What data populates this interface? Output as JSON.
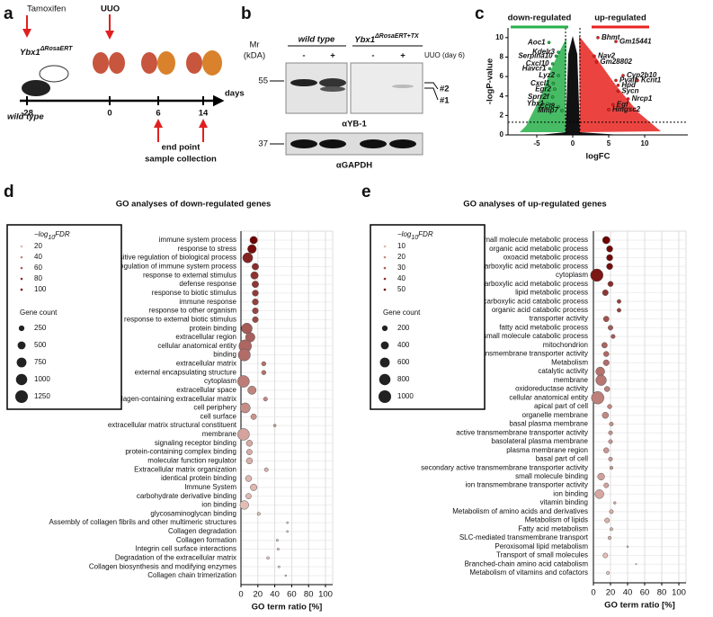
{
  "panel_a": {
    "label": "a",
    "tamoxifen": "Tamoxifen",
    "uuo": "UUO",
    "mouse_ko": {
      "gene": "Ybx1",
      "sup": "ΔRosaERT"
    },
    "mouse_wt": "wild type",
    "timepoints": [
      "-28",
      "0",
      "6",
      "14"
    ],
    "unit": "days",
    "endpoint": [
      "end point",
      "sample collection"
    ]
  },
  "panel_b": {
    "label": "b",
    "mr": [
      "Mr",
      "(kDA)"
    ],
    "group_wt": "wild type",
    "group_ko": {
      "gene": "Ybx1",
      "sup": "ΔRosaERT+TX"
    },
    "signs": [
      "-",
      "+",
      "-",
      "+"
    ],
    "condition": "UUO (day 6)",
    "markers": [
      "55",
      "37"
    ],
    "bands": [
      "#2",
      "#1"
    ],
    "antibodies": [
      "αYB-1",
      "αGAPDH"
    ]
  },
  "panel_c": {
    "label": "c"
  },
  "panel_d": {
    "label": "d"
  },
  "panel_e": {
    "label": "e"
  },
  "chart_data": [
    {
      "type": "scatter",
      "x_label": "logFC",
      "y_label": "-logP-value",
      "xlim": [
        -9,
        16
      ],
      "ylim": [
        0,
        11
      ],
      "xticks": [
        -5,
        0,
        5,
        10
      ],
      "yticks": [
        0,
        2,
        4,
        6,
        8,
        10
      ],
      "thresholds": {
        "logfc": [
          -1,
          1
        ],
        "pvalue": 1.3
      },
      "series": [
        {
          "name": "down-regulated",
          "color": "#27b04a",
          "labels": [
            "Aoc1",
            "Kdelr3",
            "Serpina10",
            "Cxcl10",
            "Havcr1",
            "Lyz2",
            "Cxcl1",
            "Egr2",
            "Sprr2f",
            "Ybx1",
            "Ccl8",
            "Mmp7"
          ],
          "x": [
            -3.3,
            -2,
            -2.3,
            -2.8,
            -3.2,
            -2,
            -2.7,
            -2.5,
            -2.8,
            -3.5,
            -2,
            -1.5
          ],
          "values": [
            9.5,
            8.5,
            8.1,
            7.3,
            6.8,
            6.1,
            5.3,
            4.7,
            3.9,
            3.2,
            2.9,
            2.5
          ]
        },
        {
          "name": "up-regulated",
          "color": "#e8231f",
          "labels": [
            "Bhmt",
            "Gm15441",
            "Nav2",
            "Gm28802",
            "Cyp2b10",
            "Pvalb",
            "Kcnt1",
            "Hpd",
            "Sycn",
            "Nrcp1",
            "Egf",
            "Hmgsc2"
          ],
          "x": [
            3.5,
            6,
            3,
            3.3,
            7,
            6,
            9,
            6.3,
            6.3,
            7.7,
            5.6,
            5
          ],
          "values": [
            10,
            9.6,
            8.1,
            7.5,
            6.1,
            5.6,
            5.6,
            5.1,
            4.5,
            3.7,
            3.1,
            2.6
          ]
        }
      ]
    },
    {
      "type": "dot",
      "title": "GO analyses of down-regulated genes",
      "x_label": "GO term ratio [%]",
      "xlim": [
        0,
        100
      ],
      "xticks": [
        0,
        20,
        40,
        60,
        80,
        100
      ],
      "grid": true,
      "fdr_title": {
        "prefix": "−log",
        "sub": "10",
        "suffix": "FDR"
      },
      "fdr_legend": [
        20,
        40,
        60,
        80,
        100
      ],
      "count_title": "Gene count",
      "count_legend": [
        250,
        500,
        750,
        1000,
        1250
      ],
      "color_scale": [
        "#fbe3da",
        "#6e0000"
      ],
      "categories": [
        "immune system process",
        "response to stress",
        "positive regulation of biological process",
        "regulation of immune system process",
        "response to external stimulus",
        "defense response",
        "response to biotic stimulus",
        "immune response",
        "response to other organism",
        "response to external biotic stimulus",
        "protein binding",
        "extracellular region",
        "cellular anatomical entity",
        "binding",
        "extracellular matrix",
        "external encapsulating structure",
        "cytoplasm",
        "extracellular space",
        "collagen-containing extracellular matrix",
        "cell periphery",
        "cell surface",
        "extracellular matrix structural constituent",
        "membrane",
        "signaling receptor binding",
        "protein-containing complex binding",
        "molecular function regulator",
        "Extracellular matrix organization",
        "identical protein binding",
        "Immune System",
        "carbohydrate derivative binding",
        "ion binding",
        "glycosaminoglycan binding",
        "Assembly of collagen fibrils and other multimeric structures",
        "Collagen degradation",
        "Collagen formation",
        "Integrin cell surface interactions",
        "Degradation of the extracellular matrix",
        "Collagen biosynthesis and modifying enzymes",
        "Collagen chain trimerization"
      ],
      "values": [
        15,
        13,
        8,
        17,
        16,
        17,
        17,
        17,
        17,
        17,
        7,
        11,
        5,
        4,
        27,
        27,
        3,
        13,
        29,
        5,
        15,
        40,
        3,
        10,
        10,
        10,
        30,
        9,
        15,
        9,
        4,
        21,
        55,
        55,
        43,
        44,
        32,
        45,
        53
      ],
      "fdr": [
        100,
        95,
        85,
        80,
        78,
        76,
        74,
        72,
        70,
        68,
        60,
        58,
        55,
        52,
        50,
        50,
        45,
        42,
        40,
        38,
        35,
        30,
        28,
        25,
        24,
        23,
        22,
        20,
        20,
        18,
        17,
        15,
        12,
        12,
        11,
        10,
        10,
        9,
        8
      ],
      "gene_count": [
        450,
        600,
        800,
        350,
        450,
        350,
        300,
        300,
        280,
        280,
        900,
        700,
        1250,
        1150,
        150,
        150,
        1100,
        550,
        130,
        800,
        250,
        60,
        1100,
        300,
        250,
        300,
        120,
        300,
        350,
        250,
        600,
        80,
        30,
        30,
        40,
        40,
        60,
        35,
        25
      ]
    },
    {
      "type": "dot",
      "title": "GO analyses of up-regulated genes",
      "x_label": "GO term ratio [%]",
      "xlim": [
        0,
        100
      ],
      "xticks": [
        0,
        20,
        40,
        60,
        80,
        100
      ],
      "grid": true,
      "fdr_title": {
        "prefix": "−log",
        "sub": "10",
        "suffix": "FDR"
      },
      "fdr_legend": [
        10,
        20,
        30,
        40,
        50
      ],
      "count_title": "Gene count",
      "count_legend": [
        200,
        400,
        600,
        800,
        1000
      ],
      "color_scale": [
        "#fbe3da",
        "#6e0000"
      ],
      "categories": [
        "small molecule metabolic process",
        "organic acid metabolic process",
        "oxoacid metabolic process",
        "carboxylic acid metabolic process",
        "cytoplasm",
        "monocarboxylic acid metabolic process",
        "lipid metabolic process",
        "carboxylic acid catabolic process",
        "organic acid catabolic process",
        "transporter activity",
        "fatty acid metabolic process",
        "small molecule catabolic process",
        "mitochondrion",
        "transmembrane transporter activity",
        "Metabolism",
        "catalytic activity",
        "membrane",
        "oxidoreductase activity",
        "cellular anatomical entity",
        "apical part of cell",
        "organelle membrane",
        "basal plasma membrane",
        "active transmembrane transporter activity",
        "basolateral plasma membrane",
        "plasma membrane region",
        "basal part of cell",
        "secondary active transmembrane transporter activity",
        "small molecule binding",
        "ion transmembrane transporter activity",
        "ion binding",
        "vitamin binding",
        "Metabolism of amino acids and derivatives",
        "Metabolism of lipids",
        "Fatty acid metabolism",
        "SLC-mediated transmembrane transport",
        "Peroxisomal lipid metabolism",
        "Transport of small molecules",
        "Branched-chain amino acid catabolism",
        "Metabolism of vitamins and cofactors"
      ],
      "values": [
        15,
        19,
        19,
        19,
        4,
        20,
        14,
        30,
        30,
        15,
        20,
        23,
        13,
        15,
        15,
        8,
        9,
        16,
        5,
        19,
        14,
        21,
        20,
        20,
        15,
        20,
        21,
        9,
        15,
        7,
        25,
        21,
        16,
        21,
        19,
        40,
        14,
        50,
        17
      ],
      "fdr": [
        50,
        48,
        48,
        47,
        45,
        40,
        38,
        36,
        36,
        32,
        30,
        30,
        28,
        27,
        26,
        25,
        24,
        22,
        22,
        20,
        20,
        18,
        18,
        17,
        17,
        16,
        15,
        15,
        14,
        13,
        12,
        12,
        11,
        10,
        10,
        8,
        8,
        6,
        6
      ],
      "gene_count": [
        350,
        250,
        250,
        250,
        1000,
        180,
        220,
        100,
        100,
        200,
        150,
        110,
        200,
        180,
        220,
        500,
        700,
        180,
        1000,
        120,
        250,
        100,
        100,
        100,
        180,
        100,
        70,
        300,
        150,
        500,
        40,
        100,
        150,
        60,
        70,
        20,
        150,
        10,
        60
      ]
    }
  ]
}
